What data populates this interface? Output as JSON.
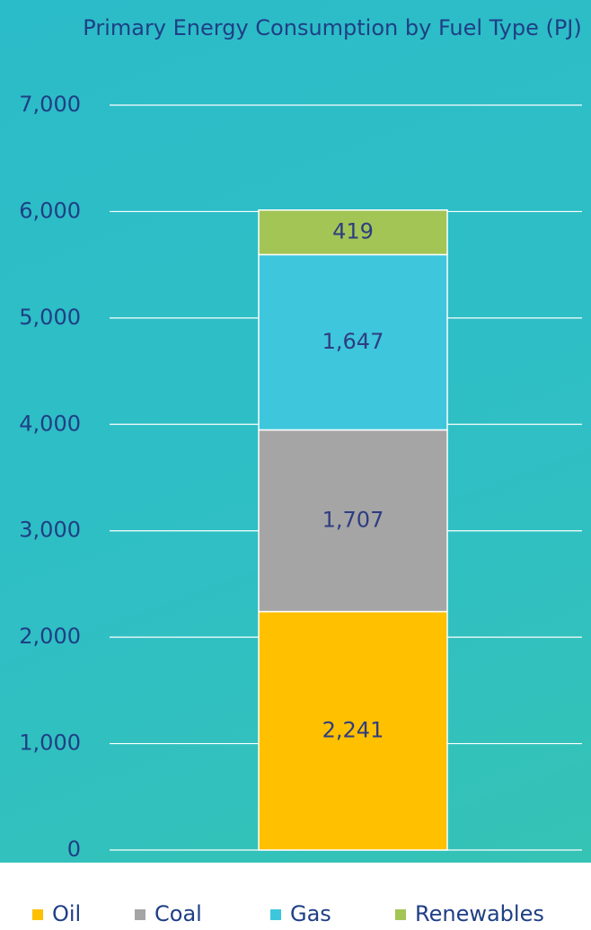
{
  "chart_data": {
    "type": "stacked_bar",
    "title": "Primary Energy Consumption by Fuel Type (PJ)",
    "categories": [
      null
    ],
    "series": [
      {
        "name": "Oil",
        "color": "#ffc000",
        "values": [
          2241
        ],
        "value_labels": [
          "2,241"
        ]
      },
      {
        "name": "Coal",
        "color": "#a5a5a5",
        "values": [
          1707
        ],
        "value_labels": [
          "1,707"
        ]
      },
      {
        "name": "Gas",
        "color": "#3ec6dc",
        "values": [
          1647
        ],
        "value_labels": [
          "1,647"
        ]
      },
      {
        "name": "Renewables",
        "color": "#a2c555",
        "values": [
          419
        ],
        "value_labels": [
          "419"
        ]
      }
    ],
    "ylim": [
      0,
      7000
    ],
    "yticks": [
      0,
      {
        "value": 1000,
        "label": "1,000"
      },
      {
        "value": 2000,
        "label": "2,000"
      },
      {
        "value": 3000,
        "label": "3,000"
      },
      {
        "value": 4000,
        "label": "4,000"
      },
      {
        "value": 5000,
        "label": "5,000"
      },
      {
        "value": 6000,
        "label": "6,000"
      },
      {
        "value": 7000,
        "label": "7,000"
      }
    ],
    "grid": true,
    "legend": "bottom"
  }
}
